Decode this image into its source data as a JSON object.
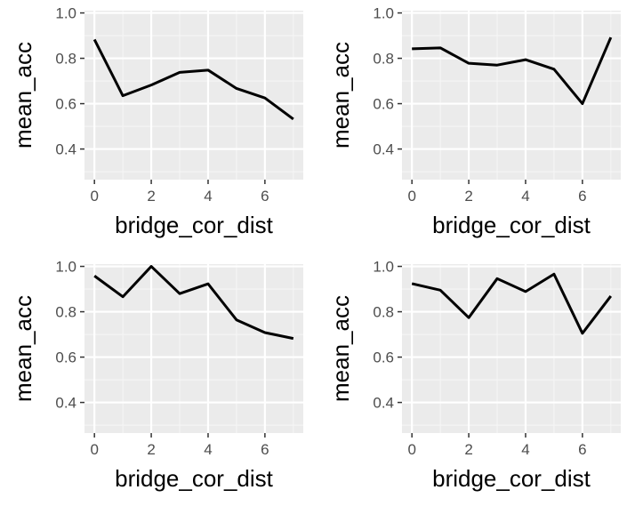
{
  "colors": {
    "panel_background": "#EBEBEB",
    "grid_major": "#FFFFFF",
    "grid_minor": "#F5F5F5",
    "line": "#000000",
    "tick_text": "#4D4D4D"
  },
  "chart_data": [
    {
      "type": "line",
      "xlabel": "bridge_cor_dist",
      "ylabel": "mean_acc",
      "xlim": [
        -0.35,
        7.35
      ],
      "ylim": [
        0.265,
        1.01
      ],
      "xticks": [
        0,
        2,
        4,
        6
      ],
      "xtick_labels": [
        "0",
        "2",
        "4",
        "6"
      ],
      "yticks": [
        0.4,
        0.6,
        0.8,
        1.0
      ],
      "ytick_labels": [
        "0.4",
        "0.6",
        "0.8",
        "1.0"
      ],
      "grid": true,
      "x": [
        0,
        1,
        2,
        3,
        4,
        5,
        6,
        7
      ],
      "values": [
        0.883,
        0.635,
        0.682,
        0.738,
        0.748,
        0.667,
        0.625,
        0.532
      ]
    },
    {
      "type": "line",
      "xlabel": "bridge_cor_dist",
      "ylabel": "mean_acc",
      "xlim": [
        -0.35,
        7.35
      ],
      "ylim": [
        0.265,
        1.01
      ],
      "xticks": [
        0,
        2,
        4,
        6
      ],
      "xtick_labels": [
        "0",
        "2",
        "4",
        "6"
      ],
      "yticks": [
        0.4,
        0.6,
        0.8,
        1.0
      ],
      "ytick_labels": [
        "0.4",
        "0.6",
        "0.8",
        "1.0"
      ],
      "grid": true,
      "x": [
        0,
        1,
        2,
        3,
        4,
        5,
        6,
        7
      ],
      "values": [
        0.842,
        0.846,
        0.778,
        0.77,
        0.794,
        0.752,
        0.6,
        0.892
      ]
    },
    {
      "type": "line",
      "xlabel": "bridge_cor_dist",
      "ylabel": "mean_acc",
      "xlim": [
        -0.35,
        7.35
      ],
      "ylim": [
        0.265,
        1.01
      ],
      "xticks": [
        0,
        2,
        4,
        6
      ],
      "xtick_labels": [
        "0",
        "2",
        "4",
        "6"
      ],
      "yticks": [
        0.4,
        0.6,
        0.8,
        1.0
      ],
      "ytick_labels": [
        "0.4",
        "0.6",
        "0.8",
        "1.0"
      ],
      "grid": true,
      "x": [
        0,
        1,
        2,
        3,
        4,
        5,
        6,
        7
      ],
      "values": [
        0.958,
        0.866,
        1.0,
        0.88,
        0.923,
        0.764,
        0.708,
        0.682
      ]
    },
    {
      "type": "line",
      "xlabel": "bridge_cor_dist",
      "ylabel": "mean_acc",
      "xlim": [
        -0.35,
        7.35
      ],
      "ylim": [
        0.265,
        1.01
      ],
      "xticks": [
        0,
        2,
        4,
        6
      ],
      "xtick_labels": [
        "0",
        "2",
        "4",
        "6"
      ],
      "yticks": [
        0.4,
        0.6,
        0.8,
        1.0
      ],
      "ytick_labels": [
        "0.4",
        "0.6",
        "0.8",
        "1.0"
      ],
      "grid": true,
      "x": [
        0,
        1,
        2,
        3,
        4,
        5,
        6,
        7
      ],
      "values": [
        0.924,
        0.895,
        0.774,
        0.946,
        0.889,
        0.966,
        0.705,
        0.869
      ]
    }
  ]
}
